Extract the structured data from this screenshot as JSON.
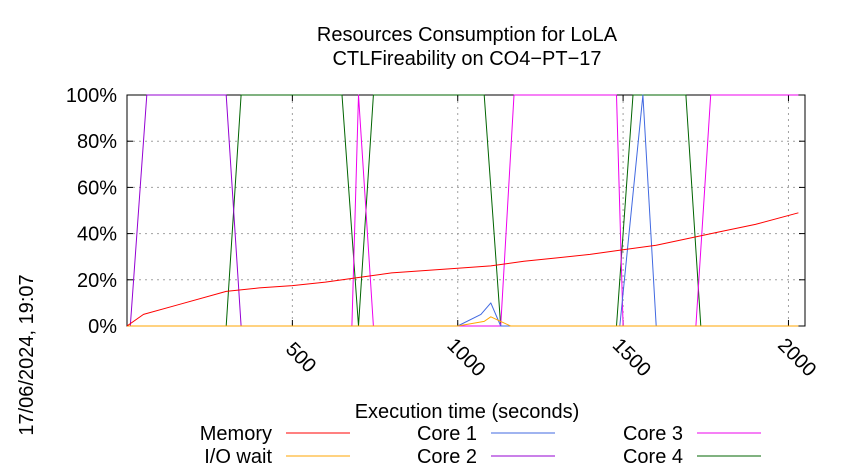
{
  "chart_data": {
    "type": "line",
    "title": [
      "Resources Consumption for LoLA",
      "CTLFireability on CO4−PT−17"
    ],
    "xlabel": "Execution time (seconds)",
    "ylabel": "",
    "side_label": "17/06/2024, 19:07",
    "xlim": [
      0,
      2050
    ],
    "ylim": [
      0,
      100
    ],
    "x_ticks": [
      500,
      1000,
      1500,
      2000
    ],
    "y_ticks": [
      0,
      20,
      40,
      60,
      80,
      100
    ],
    "y_tick_labels": [
      "0%",
      "20%",
      "40%",
      "60%",
      "80%",
      "100%"
    ],
    "grid": true,
    "legend_placement": "bottom",
    "series": [
      {
        "name": "Memory",
        "color": "#ff0000",
        "x": [
          0,
          50,
          150,
          300,
          400,
          500,
          600,
          700,
          800,
          1000,
          1100,
          1200,
          1300,
          1400,
          1500,
          1600,
          1700,
          1800,
          1900,
          2030
        ],
        "y": [
          0,
          5,
          9,
          15,
          16.5,
          17.5,
          19,
          21,
          23,
          25,
          26,
          28,
          29.5,
          31,
          33,
          35,
          38,
          41,
          44,
          49
        ]
      },
      {
        "name": "I/O wait",
        "color": "#ffa500",
        "x": [
          0,
          1000,
          1080,
          1100,
          1130,
          1160,
          2030
        ],
        "y": [
          0,
          0,
          2,
          4,
          2,
          0,
          0
        ]
      },
      {
        "name": "Core 1",
        "color": "#4169e1",
        "x": [
          0,
          1000,
          1070,
          1100,
          1130,
          1490,
          1560,
          1600,
          2030
        ],
        "y": [
          0,
          0,
          5,
          10,
          0,
          0,
          100,
          0,
          0
        ]
      },
      {
        "name": "Core 2",
        "color": "#9400d3",
        "x": [
          0,
          10,
          60,
          300,
          345,
          2030
        ],
        "y": [
          0,
          0,
          100,
          100,
          0,
          0
        ]
      },
      {
        "name": "Core 3",
        "color": "#ee00ee",
        "x": [
          0,
          680,
          700,
          745,
          1130,
          1170,
          1480,
          1500,
          1720,
          1765,
          2030
        ],
        "y": [
          0,
          0,
          100,
          0,
          0,
          100,
          100,
          0,
          0,
          100,
          100
        ]
      },
      {
        "name": "Core 4",
        "color": "#006400",
        "x": [
          0,
          300,
          345,
          650,
          700,
          745,
          1080,
          1130,
          1480,
          1530,
          1690,
          1735,
          2030
        ],
        "y": [
          0,
          0,
          100,
          100,
          0,
          100,
          100,
          0,
          0,
          100,
          100,
          0,
          0
        ]
      }
    ]
  }
}
